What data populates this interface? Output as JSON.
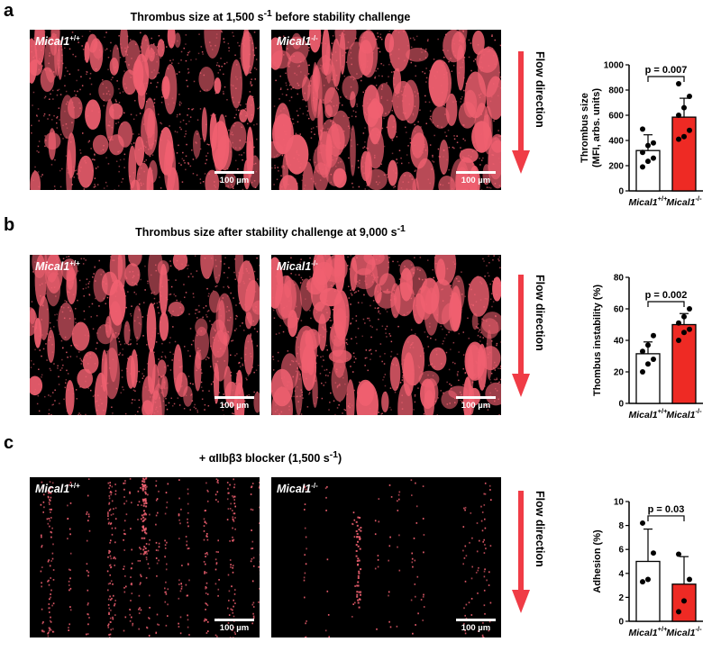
{
  "panels": [
    {
      "letter": "a",
      "title_html": "Thrombus size at 1,500 s<sup>-1</sup> before stability challenge",
      "density": "dense",
      "left_label": "Mical1",
      "left_sup": "+/+",
      "right_label": "Mical1",
      "right_sup": "-/-",
      "scale_label": "100 µm",
      "flow_label": "Flow direction"
    },
    {
      "letter": "b",
      "title_html": "Thrombus size after stability challenge at 9,000 s<sup>-1</sup>",
      "density": "dense",
      "left_label": "Mical1",
      "left_sup": "+/+",
      "right_label": "Mical1",
      "right_sup": "-/-",
      "scale_label": "100 µm",
      "flow_label": "Flow direction"
    },
    {
      "letter": "c",
      "title_html": "+ αIIbβ3 blocker (1,500 s<sup>-1</sup>)",
      "density": "sparse",
      "left_label": "Mical1",
      "left_sup": "+/+",
      "right_label": "Mical1",
      "right_sup": "-/-",
      "scale_label": "100 µm",
      "flow_label": "Flow direction"
    }
  ],
  "colors": {
    "thrombus": "#f06070",
    "arrow": "#f03c46",
    "ko_bar": "#ee2a24",
    "wt_bar": "#ffffff"
  },
  "chart_data": [
    {
      "type": "bar",
      "categories": [
        "Mical1+/+",
        "Mical1-/-"
      ],
      "category_sup": [
        "+/+",
        "-/-"
      ],
      "category_base": [
        "Mical1",
        "Mical1"
      ],
      "values": [
        320,
        585
      ],
      "errors": [
        125,
        150
      ],
      "points": [
        [
          190,
          235,
          260,
          305,
          360,
          380,
          490
        ],
        [
          410,
          430,
          480,
          600,
          660,
          750,
          850
        ]
      ],
      "ylabel_lines": [
        "Thrombus size",
        "(MFI, arbs. units)"
      ],
      "ylim": [
        0,
        1000
      ],
      "yticks": [
        0,
        200,
        400,
        600,
        800,
        1000
      ],
      "annotation": "p = 0.007"
    },
    {
      "type": "bar",
      "categories": [
        "Mical1+/+",
        "Mical1-/-"
      ],
      "category_sup": [
        "+/+",
        "-/-"
      ],
      "category_base": [
        "Mical1",
        "Mical1"
      ],
      "values": [
        31.5,
        50
      ],
      "errors": [
        7.5,
        7
      ],
      "points": [
        [
          20,
          25,
          28,
          33,
          37,
          43
        ],
        [
          40,
          45,
          47,
          51,
          55,
          60
        ]
      ],
      "ylabel_lines": [
        "Thombus instability (%)"
      ],
      "ylim": [
        0,
        80
      ],
      "yticks": [
        0,
        20,
        40,
        60,
        80
      ],
      "annotation": "p = 0.002"
    },
    {
      "type": "bar",
      "categories": [
        "Mical1+/+",
        "Mical1-/-"
      ],
      "category_sup": [
        "+/+",
        "-/-"
      ],
      "category_base": [
        "Mical1",
        "Mical1"
      ],
      "values": [
        5,
        3.1
      ],
      "errors": [
        2.7,
        2.3
      ],
      "points": [
        [
          3.3,
          3.5,
          5.7,
          8.2
        ],
        [
          0.8,
          1.7,
          3.5,
          5.6
        ]
      ],
      "ylabel_lines": [
        "Adhesion (%)"
      ],
      "ylim": [
        0,
        10
      ],
      "yticks": [
        0,
        2,
        4,
        6,
        8,
        10
      ],
      "annotation": "p = 0.03"
    }
  ]
}
